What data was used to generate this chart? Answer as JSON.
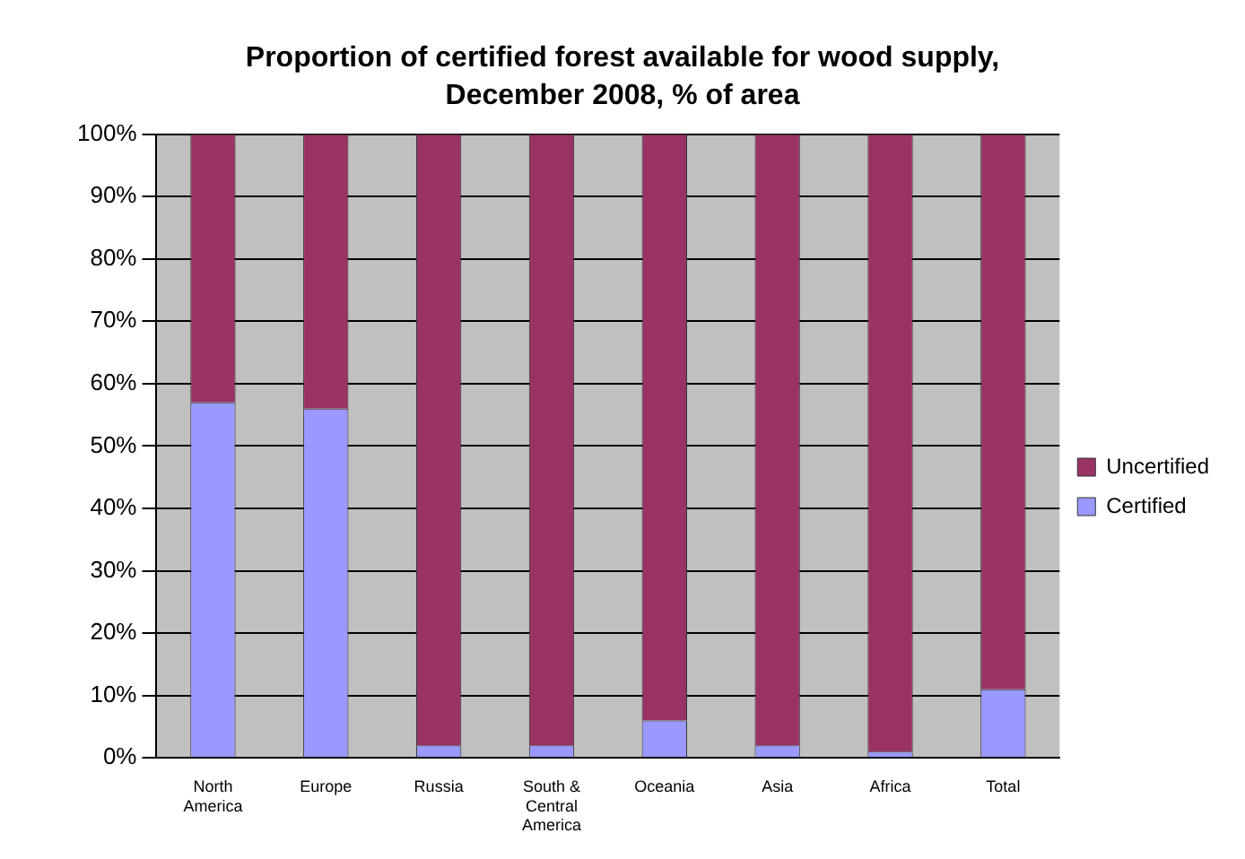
{
  "chart_data": {
    "type": "bar",
    "title": "Proportion of certified forest available for wood supply, December 2008, % of area",
    "categories": [
      "North America",
      "Europe",
      "Russia",
      "South & Central America",
      "Oceania",
      "Asia",
      "Africa",
      "Total"
    ],
    "stacked": true,
    "series": [
      {
        "name": "Certified",
        "color": "#9999ff",
        "values": [
          57,
          56,
          2,
          2,
          6,
          2,
          1,
          11
        ]
      },
      {
        "name": "Uncertified",
        "color": "#993366",
        "values": [
          43,
          44,
          98,
          98,
          94,
          98,
          99,
          89
        ]
      }
    ],
    "ylim": [
      0,
      100
    ],
    "yticks": [
      {
        "value": 0,
        "label": "0%"
      },
      {
        "value": 10,
        "label": "10%"
      },
      {
        "value": 20,
        "label": "20%"
      },
      {
        "value": 30,
        "label": "30%"
      },
      {
        "value": 40,
        "label": "40%"
      },
      {
        "value": 50,
        "label": "50%"
      },
      {
        "value": 60,
        "label": "60%"
      },
      {
        "value": 70,
        "label": "70%"
      },
      {
        "value": 80,
        "label": "80%"
      },
      {
        "value": 90,
        "label": "90%"
      },
      {
        "value": 100,
        "label": "100%"
      }
    ],
    "grid": "y",
    "legend": "right"
  }
}
